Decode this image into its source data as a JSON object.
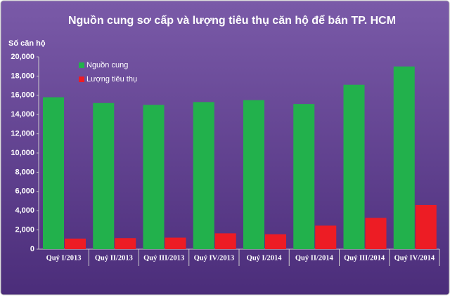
{
  "chart_data": {
    "type": "bar",
    "title": "Nguồn cung sơ cấp và lượng tiêu thụ căn hộ để bán TP. HCM",
    "y_label": "Số căn hộ",
    "categories": [
      "Quý I/2013",
      "Quý II/2013",
      "Quý III/2013",
      "Quý IV/2013",
      "Quý I/2014",
      "Quý II/2014",
      "Quý III/2014",
      "Quý IV/2014"
    ],
    "series": [
      {
        "name": "Nguồn cung",
        "color": "#22b14c",
        "values": [
          15800,
          15200,
          15000,
          15300,
          15500,
          15100,
          17100,
          19000
        ]
      },
      {
        "name": "Lượng tiêu thụ",
        "color": "#ed1c24",
        "values": [
          1100,
          1150,
          1200,
          1650,
          1550,
          2450,
          3250,
          4600
        ]
      }
    ],
    "ylim": [
      0,
      20000
    ],
    "yticks": [
      0,
      {
        "value": 2000,
        "label": "2,000"
      },
      {
        "value": 4000,
        "label": "4,000"
      },
      {
        "value": 6000,
        "label": "6,000"
      },
      {
        "value": 8000,
        "label": "8,000"
      },
      {
        "value": 10000,
        "label": "10,000"
      },
      {
        "value": 12000,
        "label": "12,000"
      },
      {
        "value": 14000,
        "label": "14,000"
      },
      {
        "value": 16000,
        "label": "16,000"
      },
      {
        "value": 18000,
        "label": "18,000"
      },
      {
        "value": 20000,
        "label": "20,000"
      }
    ],
    "grid": false,
    "legend": "top-left"
  }
}
